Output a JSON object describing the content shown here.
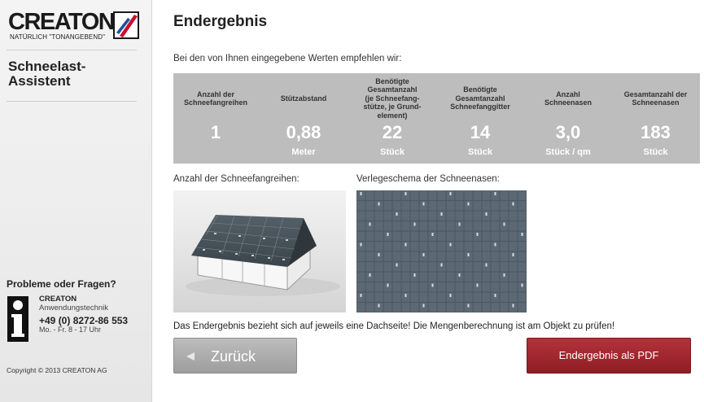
{
  "brand": {
    "name": "CREATON",
    "tagline": "NATÜRLICH \"TONANGEBEND\"",
    "colors": {
      "red": "#c8102e",
      "blue": "#1f4e9c",
      "dark_red_button": "#9a1f27"
    }
  },
  "sidebar": {
    "title_line1": "Schneelast-",
    "title_line2": "Assistent",
    "help_title": "Probleme oder Fragen?",
    "contact": {
      "name": "CREATON",
      "dept": "Anwendungstechnik",
      "phone": "+49 (0) 8272-86 553",
      "hours": "Mo. - Fr. 8 - 17 Uhr"
    },
    "copyright": "Copyright © 2013 CREATON AG",
    "icons": {
      "info": "info-person-icon"
    }
  },
  "main": {
    "title": "Endergebnis",
    "intro": "Bei den von Ihnen eingegebene Werten empfehlen wir:",
    "results": [
      {
        "head": [
          "Anzahl der",
          "Schneefangreihen"
        ],
        "value": "1",
        "unit": ""
      },
      {
        "head": [
          "Stützabstand"
        ],
        "value": "0,88",
        "unit": "Meter"
      },
      {
        "head": [
          "Benötigte",
          "Gesamtanzahl",
          "(je Schneefang-",
          "stütze, je Grund-",
          "element)"
        ],
        "value": "22",
        "unit": "Stück"
      },
      {
        "head": [
          "Benötigte",
          "Gesamtanzahl",
          "Schneefanggitter"
        ],
        "value": "14",
        "unit": "Stück"
      },
      {
        "head": [
          "Anzahl",
          "Schneenasen"
        ],
        "value": "3,0",
        "unit": "Stück / qm"
      },
      {
        "head": [
          "Gesamtanzahl der",
          "Schneenasen"
        ],
        "value": "183",
        "unit": "Stück"
      }
    ],
    "label_rows": "Anzahl der Schneefangreihen:",
    "label_scheme": "Verlegeschema der Schneenasen:",
    "note": "Das Endergebnis bezieht sich auf jeweils eine Dachseite! Die Mengenberechnung ist am Objekt zu prüfen!",
    "back_label": "Zurück",
    "pdf_label": "Endergebnis als PDF",
    "icons": {
      "back": "left-arrow-icon"
    }
  }
}
